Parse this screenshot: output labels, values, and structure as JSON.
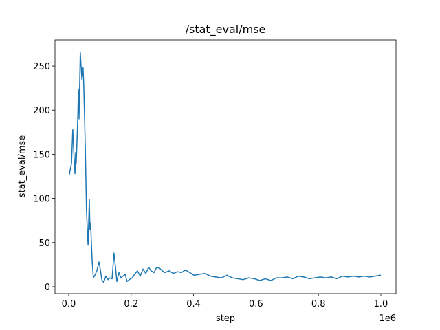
{
  "chart_data": {
    "type": "line",
    "title": "/stat_eval/mse",
    "x_label": "step",
    "y_label": "stat_eval/mse",
    "x_offset_label": "1e6",
    "x": [
      2000,
      9000,
      13000,
      18000,
      20000,
      22000,
      24000,
      29000,
      31000,
      33000,
      37000,
      42000,
      46000,
      48000,
      53000,
      57000,
      62000,
      66000,
      68000,
      70000,
      75000,
      79000,
      84000,
      90000,
      97000,
      101000,
      106000,
      112000,
      119000,
      126000,
      132000,
      139000,
      145000,
      150000,
      154000,
      161000,
      167000,
      174000,
      181000,
      187000,
      194000,
      203000,
      211000,
      220000,
      229000,
      238000,
      247000,
      256000,
      264000,
      273000,
      282000,
      291000,
      300000,
      308000,
      322000,
      335000,
      348000,
      361000,
      374000,
      388000,
      401000,
      419000,
      436000,
      454000,
      471000,
      489000,
      507000,
      524000,
      542000,
      559000,
      577000,
      595000,
      612000,
      630000,
      648000,
      665000,
      683000,
      700000,
      718000,
      736000,
      753000,
      771000,
      789000,
      806000,
      824000,
      841000,
      859000,
      877000,
      894000,
      912000,
      930000,
      947000,
      965000,
      982000,
      1000000
    ],
    "series": [
      {
        "name": "stat_eval/mse",
        "color": "#1f77b4",
        "values": [
          127,
          140,
          178,
          140,
          128,
          152,
          140,
          190,
          224,
          190,
          266,
          235,
          248,
          230,
          160,
          85,
          47,
          99,
          65,
          72,
          30,
          10,
          13,
          18,
          28,
          20,
          8,
          5,
          12,
          8,
          10,
          9,
          38,
          22,
          6,
          16,
          10,
          12,
          14,
          6,
          8,
          10,
          14,
          18,
          12,
          20,
          15,
          22,
          18,
          16,
          22,
          21,
          18,
          16,
          18,
          15,
          17,
          16,
          19,
          16,
          13,
          14,
          15,
          12,
          11,
          10,
          13,
          10,
          9,
          8,
          10,
          9,
          7,
          9,
          7,
          10,
          10,
          11,
          9,
          12,
          11,
          9,
          10,
          11,
          10,
          11,
          9,
          12,
          11,
          12,
          11,
          12,
          11,
          12,
          13
        ]
      }
    ],
    "xlim": [
      -44000,
      1048500
    ],
    "ylim": [
      -7.8,
      279.6
    ],
    "xticks": [
      {
        "value": 0,
        "label": "0.0"
      },
      {
        "value": 200000,
        "label": "0.2"
      },
      {
        "value": 400000,
        "label": "0.4"
      },
      {
        "value": 600000,
        "label": "0.6"
      },
      {
        "value": 800000,
        "label": "0.8"
      },
      {
        "value": 1000000,
        "label": "1.0"
      }
    ],
    "yticks": [
      0,
      50,
      100,
      150,
      200,
      250
    ],
    "grid": false
  }
}
